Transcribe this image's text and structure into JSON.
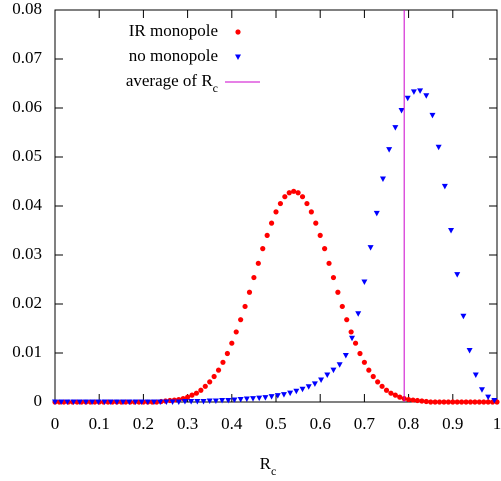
{
  "chart_data": {
    "type": "scatter",
    "x_label": "Rc",
    "xlim": [
      0,
      1
    ],
    "ylim": [
      0,
      0.08
    ],
    "xticks": [
      0,
      0.1,
      0.2,
      0.3,
      0.4,
      0.5,
      0.6,
      0.7,
      0.8,
      0.9,
      1
    ],
    "yticks": [
      0,
      0.01,
      0.02,
      0.03,
      0.04,
      0.05,
      0.06,
      0.07,
      0.08
    ],
    "legend": "top-left",
    "series": [
      {
        "name": "IR monopole",
        "color": "#ff0000",
        "marker": "circle",
        "x": [
          0,
          0.01,
          0.02,
          0.03,
          0.04,
          0.05,
          0.06,
          0.07,
          0.08,
          0.09,
          0.1,
          0.11,
          0.12,
          0.13,
          0.14,
          0.15,
          0.16,
          0.17,
          0.18,
          0.19,
          0.2,
          0.21,
          0.22,
          0.23,
          0.24,
          0.25,
          0.26,
          0.27,
          0.28,
          0.29,
          0.3,
          0.31,
          0.32,
          0.33,
          0.34,
          0.35,
          0.36,
          0.37,
          0.38,
          0.39,
          0.4,
          0.41,
          0.42,
          0.43,
          0.44,
          0.45,
          0.46,
          0.47,
          0.48,
          0.49,
          0.5,
          0.51,
          0.52,
          0.53,
          0.54,
          0.55,
          0.56,
          0.57,
          0.58,
          0.59,
          0.6,
          0.61,
          0.62,
          0.63,
          0.64,
          0.65,
          0.66,
          0.67,
          0.68,
          0.69,
          0.7,
          0.71,
          0.72,
          0.73,
          0.74,
          0.75,
          0.76,
          0.77,
          0.78,
          0.79,
          0.8,
          0.81,
          0.82,
          0.83,
          0.84,
          0.85,
          0.86,
          0.87,
          0.88,
          0.89,
          0.9,
          0.91,
          0.92,
          0.93,
          0.94,
          0.95,
          0.96,
          0.97,
          0.98,
          0.99,
          1
        ],
        "values": [
          0,
          0,
          0,
          0,
          0,
          0,
          0,
          0,
          0,
          0,
          0,
          0,
          0,
          0,
          0,
          0,
          0,
          0,
          0,
          0,
          0,
          0,
          0,
          0,
          0.0001,
          0.0002,
          0.0003,
          0.0004,
          0.0005,
          0.0007,
          0.001,
          0.0014,
          0.0018,
          0.0024,
          0.0032,
          0.0041,
          0.0052,
          0.0065,
          0.0081,
          0.0099,
          0.012,
          0.0143,
          0.0168,
          0.0195,
          0.0224,
          0.0254,
          0.0283,
          0.0313,
          0.034,
          0.0365,
          0.0388,
          0.0405,
          0.0419,
          0.0427,
          0.043,
          0.0427,
          0.0419,
          0.0405,
          0.0388,
          0.0365,
          0.034,
          0.0313,
          0.0283,
          0.0254,
          0.0224,
          0.0195,
          0.0168,
          0.0143,
          0.012,
          0.0099,
          0.0081,
          0.0065,
          0.0052,
          0.0041,
          0.0032,
          0.0024,
          0.0018,
          0.0014,
          0.001,
          0.0007,
          0.0005,
          0.0004,
          0.0003,
          0.0002,
          0.0001,
          0,
          0,
          0,
          0,
          0,
          0,
          0,
          0,
          0,
          0,
          0,
          0,
          0,
          0,
          0,
          0
        ]
      },
      {
        "name": "no monopole",
        "color": "#0000ff",
        "marker": "triangle",
        "x": [
          0,
          0.014,
          0.028,
          0.042,
          0.056,
          0.07,
          0.084,
          0.098,
          0.112,
          0.126,
          0.14,
          0.154,
          0.168,
          0.182,
          0.196,
          0.21,
          0.224,
          0.238,
          0.252,
          0.266,
          0.28,
          0.294,
          0.308,
          0.322,
          0.336,
          0.35,
          0.364,
          0.378,
          0.392,
          0.406,
          0.42,
          0.434,
          0.448,
          0.462,
          0.476,
          0.49,
          0.504,
          0.518,
          0.532,
          0.546,
          0.56,
          0.574,
          0.588,
          0.602,
          0.616,
          0.63,
          0.644,
          0.658,
          0.672,
          0.686,
          0.7,
          0.714,
          0.728,
          0.742,
          0.756,
          0.77,
          0.784,
          0.798,
          0.812,
          0.826,
          0.84,
          0.854,
          0.868,
          0.882,
          0.896,
          0.91,
          0.924,
          0.938,
          0.952,
          0.966,
          0.98,
          0.994
        ],
        "values": [
          0,
          0,
          0,
          0,
          0,
          0,
          0,
          0,
          0,
          0,
          0,
          0,
          0,
          0,
          0,
          0,
          0,
          0,
          0,
          0,
          0,
          0.0001,
          0.0001,
          0.0001,
          0.0001,
          0.0002,
          0.0002,
          0.0003,
          0.0003,
          0.0004,
          0.0005,
          0.0006,
          0.0007,
          0.0008,
          0.0009,
          0.0011,
          0.0013,
          0.0015,
          0.0018,
          0.0022,
          0.0026,
          0.0031,
          0.0037,
          0.0045,
          0.0055,
          0.0065,
          0.0076,
          0.0095,
          0.013,
          0.018,
          0.0245,
          0.0315,
          0.0385,
          0.0455,
          0.0515,
          0.056,
          0.0595,
          0.062,
          0.0633,
          0.0635,
          0.0625,
          0.0585,
          0.052,
          0.044,
          0.035,
          0.026,
          0.0175,
          0.0105,
          0.0055,
          0.0025,
          0.001,
          0.0003
        ]
      }
    ],
    "vlines": [
      {
        "name": "average of Rc",
        "color": "#cc00cc",
        "x": 0.79
      }
    ]
  }
}
